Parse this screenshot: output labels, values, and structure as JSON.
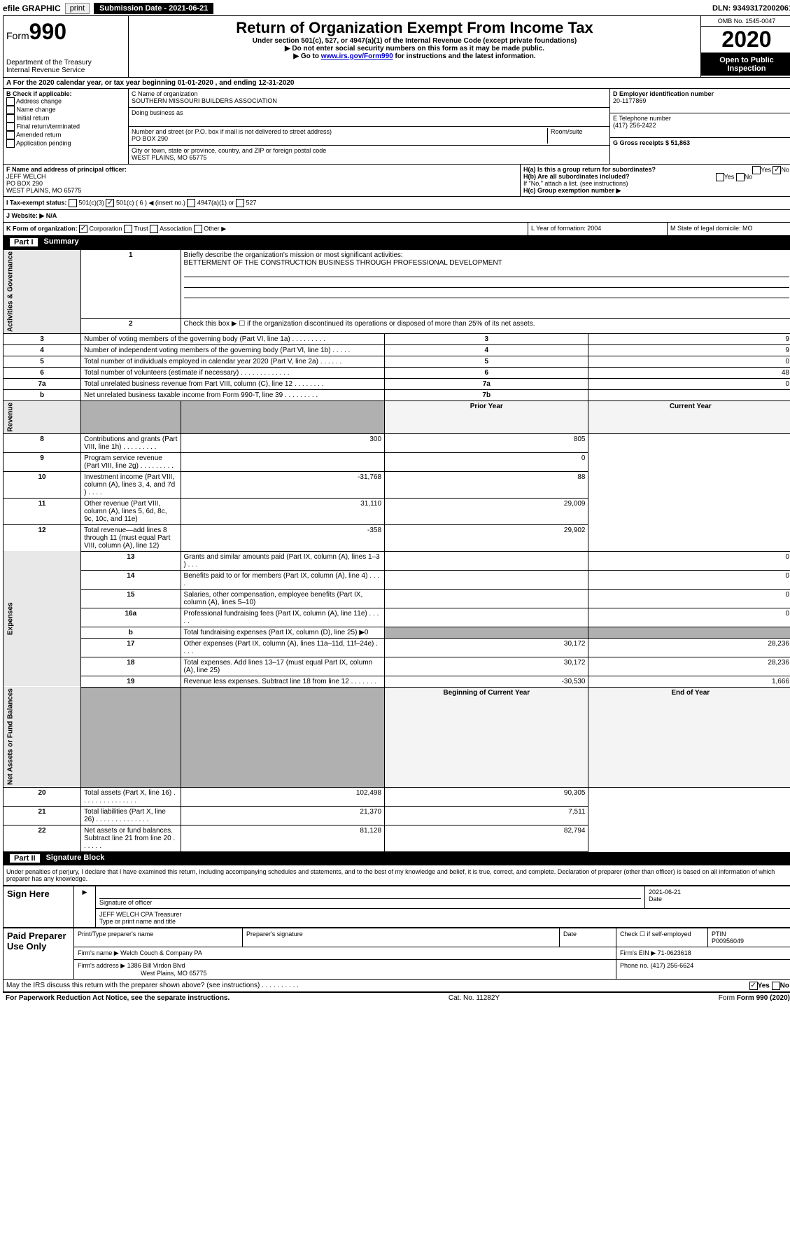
{
  "topbar": {
    "efile": "efile GRAPHIC",
    "print": "print",
    "submission": "Submission Date - 2021-06-21",
    "dln": "DLN: 93493172002061"
  },
  "header": {
    "form_label": "Form",
    "form_number": "990",
    "dept": "Department of the Treasury",
    "irs": "Internal Revenue Service",
    "title": "Return of Organization Exempt From Income Tax",
    "sub1": "Under section 501(c), 527, or 4947(a)(1) of the Internal Revenue Code (except private foundations)",
    "sub2": "▶ Do not enter social security numbers on this form as it may be made public.",
    "sub3_prefix": "▶ Go to ",
    "sub3_link": "www.irs.gov/Form990",
    "sub3_suffix": " for instructions and the latest information.",
    "omb": "OMB No. 1545-0047",
    "year": "2020",
    "open": "Open to Public Inspection"
  },
  "rowA": "A   For the 2020 calendar year, or tax year beginning 01-01-2020    , and ending 12-31-2020",
  "colB": {
    "label": "B Check if applicable:",
    "items": [
      "Address change",
      "Name change",
      "Initial return",
      "Final return/terminated",
      "Amended return",
      "Application pending"
    ]
  },
  "colC": {
    "name_label": "C Name of organization",
    "name": "SOUTHERN MISSOURI BUILDERS ASSOCIATION",
    "dba_label": "Doing business as",
    "addr_label": "Number and street (or P.O. box if mail is not delivered to street address)",
    "room_label": "Room/suite",
    "addr": "PO BOX 290",
    "city_label": "City or town, state or province, country, and ZIP or foreign postal code",
    "city": "WEST PLAINS, MO  65775"
  },
  "colDE": {
    "d_label": "D Employer identification number",
    "ein": "20-1177869",
    "e_label": "E Telephone number",
    "phone": "(417) 256-2422",
    "g_label": "G Gross receipts $ 51,863"
  },
  "colF": {
    "label": "F  Name and address of principal officer:",
    "name": "JEFF WELCH",
    "addr1": "PO BOX 290",
    "addr2": "WEST PLAINS, MO  65775"
  },
  "colH": {
    "ha": "H(a)  Is this a group return for subordinates?",
    "hb": "H(b)  Are all subordinates included?",
    "hb_note": "If \"No,\" attach a list. (see instructions)",
    "hc": "H(c)  Group exemption number ▶",
    "yes": "Yes",
    "no": "No"
  },
  "rowI": {
    "label": "I    Tax-exempt status:",
    "opt1": "501(c)(3)",
    "opt2": "501(c) ( 6 ) ◀ (insert no.)",
    "opt3": "4947(a)(1) or",
    "opt4": "527"
  },
  "rowJ": "J    Website: ▶  N/A",
  "rowK": {
    "label": "K Form of organization:",
    "corp": "Corporation",
    "trust": "Trust",
    "assoc": "Association",
    "other": "Other ▶"
  },
  "rowL": "L Year of formation: 2004",
  "rowM": "M State of legal domicile: MO",
  "part1": {
    "label": "Part I",
    "title": "Summary"
  },
  "summary": {
    "q1": "Briefly describe the organization's mission or most significant activities:",
    "mission": "BETTERMENT OF THE CONSTRUCTION BUSINESS THROUGH PROFESSIONAL DEVELOPMENT",
    "q2": "Check this box ▶ ☐  if the organization discontinued its operations or disposed of more than 25% of its net assets.",
    "rows_gov": [
      {
        "n": "3",
        "t": "Number of voting members of the governing body (Part VI, line 1a)  .  .  .  .  .  .  .  .  .",
        "ln": "3",
        "v": "9"
      },
      {
        "n": "4",
        "t": "Number of independent voting members of the governing body (Part VI, line 1b)  .  .  .  .  .",
        "ln": "4",
        "v": "9"
      },
      {
        "n": "5",
        "t": "Total number of individuals employed in calendar year 2020 (Part V, line 2a)  .  .  .  .  .  .",
        "ln": "5",
        "v": "0"
      },
      {
        "n": "6",
        "t": "Total number of volunteers (estimate if necessary)  .  .  .  .  .  .  .  .  .  .  .  .  .",
        "ln": "6",
        "v": "48"
      },
      {
        "n": "7a",
        "t": "Total unrelated business revenue from Part VIII, column (C), line 12  .  .  .  .  .  .  .  .",
        "ln": "7a",
        "v": "0"
      },
      {
        "n": "b",
        "t": "Net unrelated business taxable income from Form 990-T, line 39  .  .  .  .  .  .  .  .  .",
        "ln": "7b",
        "v": ""
      }
    ],
    "prior_label": "Prior Year",
    "current_label": "Current Year",
    "rows_rev": [
      {
        "n": "8",
        "t": "Contributions and grants (Part VIII, line 1h)  .  .  .  .  .  .  .  .  .",
        "p": "300",
        "c": "805"
      },
      {
        "n": "9",
        "t": "Program service revenue (Part VIII, line 2g)  .  .  .  .  .  .  .  .  .",
        "p": "",
        "c": "0"
      },
      {
        "n": "10",
        "t": "Investment income (Part VIII, column (A), lines 3, 4, and 7d )  .  .  .  .",
        "p": "-31,768",
        "c": "88"
      },
      {
        "n": "11",
        "t": "Other revenue (Part VIII, column (A), lines 5, 6d, 8c, 9c, 10c, and 11e)",
        "p": "31,110",
        "c": "29,009"
      },
      {
        "n": "12",
        "t": "Total revenue—add lines 8 through 11 (must equal Part VIII, column (A), line 12)",
        "p": "-358",
        "c": "29,902"
      }
    ],
    "rows_exp": [
      {
        "n": "13",
        "t": "Grants and similar amounts paid (Part IX, column (A), lines 1–3 )  .  .  .",
        "p": "",
        "c": "0"
      },
      {
        "n": "14",
        "t": "Benefits paid to or for members (Part IX, column (A), line 4)  .  .  .  .",
        "p": "",
        "c": "0"
      },
      {
        "n": "15",
        "t": "Salaries, other compensation, employee benefits (Part IX, column (A), lines 5–10)",
        "p": "",
        "c": "0"
      },
      {
        "n": "16a",
        "t": "Professional fundraising fees (Part IX, column (A), line 11e)  .  .  .  .  .",
        "p": "",
        "c": "0"
      },
      {
        "n": "b",
        "t": "Total fundraising expenses (Part IX, column (D), line 25) ▶0",
        "p": "__shade__",
        "c": "__shade__"
      },
      {
        "n": "17",
        "t": "Other expenses (Part IX, column (A), lines 11a–11d, 11f–24e)  .  .  .  .",
        "p": "30,172",
        "c": "28,236"
      },
      {
        "n": "18",
        "t": "Total expenses. Add lines 13–17 (must equal Part IX, column (A), line 25)",
        "p": "30,172",
        "c": "28,236"
      },
      {
        "n": "19",
        "t": "Revenue less expenses. Subtract line 18 from line 12  .  .  .  .  .  .  .",
        "p": "-30,530",
        "c": "1,666"
      }
    ],
    "beg_label": "Beginning of Current Year",
    "end_label": "End of Year",
    "rows_net": [
      {
        "n": "20",
        "t": "Total assets (Part X, line 16)  .  .  .  .  .  .  .  .  .  .  .  .  .  .  .",
        "p": "102,498",
        "c": "90,305"
      },
      {
        "n": "21",
        "t": "Total liabilities (Part X, line 26)  .  .  .  .  .  .  .  .  .  .  .  .  .  .",
        "p": "21,370",
        "c": "7,511"
      },
      {
        "n": "22",
        "t": "Net assets or fund balances. Subtract line 21 from line 20  .  .  .  .  .  .",
        "p": "81,128",
        "c": "82,794"
      }
    ],
    "vert_gov": "Activities & Governance",
    "vert_rev": "Revenue",
    "vert_exp": "Expenses",
    "vert_net": "Net Assets or Fund Balances"
  },
  "part2": {
    "label": "Part II",
    "title": "Signature Block",
    "perjury": "Under penalties of perjury, I declare that I have examined this return, including accompanying schedules and statements, and to the best of my knowledge and belief, it is true, correct, and complete. Declaration of preparer (other than officer) is based on all information of which preparer has any knowledge."
  },
  "sign": {
    "side": "Sign Here",
    "sig_label": "Signature of officer",
    "date": "2021-06-21",
    "date_label": "Date",
    "name": "JEFF WELCH CPA  Treasurer",
    "name_label": "Type or print name and title"
  },
  "paid": {
    "side": "Paid Preparer Use Only",
    "c1": "Print/Type preparer's name",
    "c2": "Preparer's signature",
    "c3": "Date",
    "c4a": "Check ☐ if self-employed",
    "c5": "PTIN",
    "ptin": "P00956049",
    "firm_name_label": "Firm's name    ▶",
    "firm_name": "Welch Couch & Company PA",
    "firm_ein_label": "Firm's EIN ▶",
    "firm_ein": "71-0623618",
    "firm_addr_label": "Firm's address ▶",
    "firm_addr1": "1386 Bill Virdon Blvd",
    "firm_addr2": "West Plains, MO  65775",
    "phone_label": "Phone no.",
    "phone": "(417) 256-6624"
  },
  "footer": {
    "discuss": "May the IRS discuss this return with the preparer shown above? (see instructions)  .  .  .  .  .  .  .  .  .  .",
    "yes": "Yes",
    "no": "No",
    "paperwork": "For Paperwork Reduction Act Notice, see the separate instructions.",
    "cat": "Cat. No. 11282Y",
    "form": "Form 990 (2020)"
  }
}
